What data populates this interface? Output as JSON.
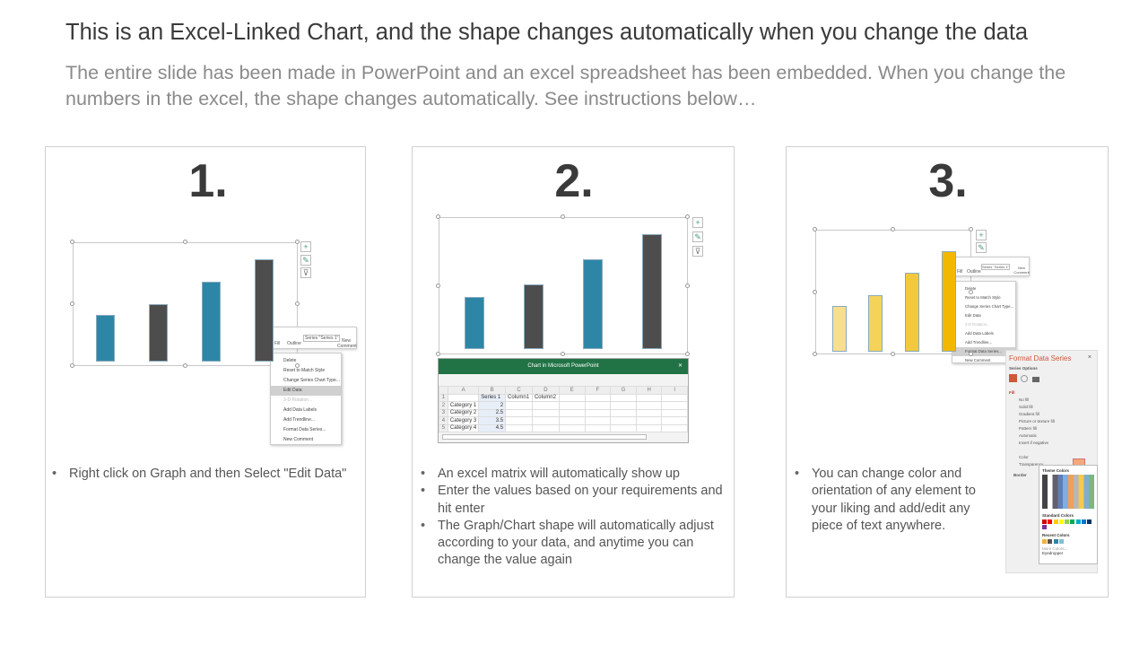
{
  "title": "This is an Excel-Linked Chart, and the shape changes automatically when you change the data",
  "subtitle": "The entire slide has been made in PowerPoint and an excel spreadsheet has been embedded. When you change the numbers in the excel, the shape changes automatically. See instructions below…",
  "panels": [
    {
      "number": "1.",
      "bullets": [
        "Right click on Graph and then Select \"Edit Data\""
      ],
      "bar_colors": [
        "#2e86a6",
        "#4d4d4d",
        "#2e86a6",
        "#4d4d4d"
      ]
    },
    {
      "number": "2.",
      "bullets": [
        "An excel matrix will automatically show up",
        "Enter the values based on your requirements and hit enter",
        "The Graph/Chart shape will automatically adjust according to your data, and anytime you can change the value again"
      ],
      "bar_colors": [
        "#2e86a6",
        "#4d4d4d",
        "#2e86a6",
        "#4d4d4d"
      ]
    },
    {
      "number": "3.",
      "bullets": [
        "You can change color and orientation of any element to your liking and add/edit any piece of text anywhere."
      ],
      "bar_colors": [
        "#f7df90",
        "#f5d25a",
        "#f4c83c",
        "#f2b800"
      ]
    }
  ],
  "chart_data": {
    "type": "bar",
    "categories": [
      "Category 1",
      "Category 2",
      "Category 3",
      "Category 4"
    ],
    "series": [
      {
        "name": "Series 1",
        "values": [
          2,
          2.5,
          3.5,
          4.5
        ]
      }
    ]
  },
  "toolbar": {
    "fill": "Fill",
    "outline": "Outline",
    "series": "Series \"Series 1\"",
    "new_comment": "New Comment"
  },
  "context_menu": [
    "Delete",
    "Reset to Match Style",
    "Change Series Chart Type...",
    "Edit Data",
    "3-D Rotation...",
    "Add Data Labels",
    "Add Trendline...",
    "Format Data Series...",
    "New Comment"
  ],
  "excel": {
    "window_title": "Chart in Microsoft PowerPoint",
    "columns": [
      "A",
      "B",
      "C",
      "D",
      "E",
      "F",
      "G",
      "H",
      "I"
    ],
    "header_row": [
      "",
      "Series 1",
      "Column1",
      "Column2"
    ]
  },
  "format_pane": {
    "title": "Format Data Series",
    "series_options": "Series Options",
    "fill": "Fill",
    "options": [
      "No fill",
      "Solid fill",
      "Gradient fill",
      "Picture or texture fill",
      "Pattern fill",
      "Automatic",
      "Invert if negative"
    ],
    "color": "Color",
    "transparency": "Transparency",
    "border": "Border",
    "theme_colors": "Theme Colors",
    "standard_colors": "Standard Colors",
    "recent_colors": "Recent Colors",
    "more_colors": "More Colors...",
    "eyedropper": "Eyedropper"
  }
}
